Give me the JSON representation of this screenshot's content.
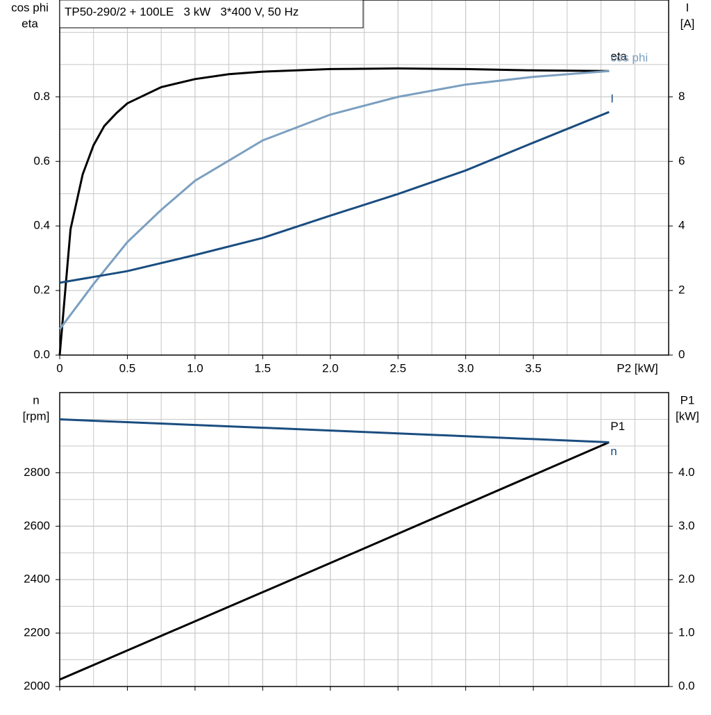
{
  "chart_data": [
    {
      "type": "line",
      "title": "TP50-290/2 + 100LE   3 kW   3*400 V, 50 Hz",
      "ylabel": [
        "cos phi",
        "eta"
      ],
      "y2label": [
        "I",
        "[A]"
      ],
      "xlabel": "P2 [kW]",
      "xlim": [
        0,
        4.5
      ],
      "xticks": [
        {
          "value": 0,
          "label": "0"
        },
        0.5,
        {
          "value": 1,
          "label": "1.0"
        },
        1.5,
        {
          "value": 2,
          "label": "2.0"
        },
        2.5,
        {
          "value": 3,
          "label": "3.0"
        },
        3.5
      ],
      "ylim": [
        0,
        1.1
      ],
      "yticks": [
        {
          "value": 0,
          "label": "0.0"
        },
        0.2,
        0.4,
        0.6,
        0.8
      ],
      "y2lim": [
        0,
        11
      ],
      "y2ticks": [
        0,
        2,
        4,
        6,
        8
      ],
      "grid": true,
      "series": [
        {
          "name": "eta",
          "color": "#000000",
          "x": [
            0,
            0.08,
            0.17,
            0.25,
            0.33,
            0.42,
            0.5,
            0.75,
            1.0,
            1.25,
            1.5,
            2.0,
            2.5,
            3.0,
            3.5,
            4.06
          ],
          "values": [
            0,
            0.39,
            0.56,
            0.65,
            0.71,
            0.75,
            0.78,
            0.83,
            0.855,
            0.87,
            0.878,
            0.886,
            0.888,
            0.886,
            0.882,
            0.88
          ]
        },
        {
          "name": "cos phi",
          "color": "#7b9fc0",
          "x": [
            0,
            0.25,
            0.5,
            0.75,
            1.0,
            1.5,
            2.0,
            2.5,
            3.0,
            3.5,
            4.06
          ],
          "values": [
            0.08,
            0.22,
            0.35,
            0.45,
            0.54,
            0.665,
            0.745,
            0.8,
            0.838,
            0.862,
            0.88
          ]
        },
        {
          "name": "I",
          "color": "#1a4d80",
          "axis": "y2",
          "x": [
            0,
            0.5,
            1.0,
            1.5,
            2.0,
            2.5,
            3.0,
            3.5,
            4.06
          ],
          "values": [
            2.24,
            2.6,
            3.1,
            3.63,
            4.32,
            4.99,
            5.72,
            6.58,
            7.53
          ]
        }
      ]
    },
    {
      "type": "line",
      "ylabel": [
        "n",
        "[rpm]"
      ],
      "y2label": [
        "P1",
        "[kW]"
      ],
      "xlim": [
        0,
        4.5
      ],
      "xticks": [
        0,
        0.5,
        1,
        1.5,
        2,
        2.5,
        3,
        3.5
      ],
      "ylim": [
        2000,
        3100
      ],
      "yticks": [
        2000,
        2200,
        2400,
        2600,
        2800
      ],
      "y2lim": [
        0,
        5.5
      ],
      "y2ticks": [
        {
          "value": 0,
          "label": "0.0"
        },
        {
          "value": 1,
          "label": "1.0"
        },
        {
          "value": 2,
          "label": "2.0"
        },
        {
          "value": 3,
          "label": "3.0"
        },
        {
          "value": 4,
          "label": "4.0"
        }
      ],
      "grid": true,
      "series": [
        {
          "name": "P1",
          "color": "#000000",
          "axis": "y2",
          "x": [
            0,
            2,
            4.06
          ],
          "values": [
            0.13,
            2.31,
            4.57
          ]
        },
        {
          "name": "n",
          "color": "#1a4d80",
          "x": [
            0,
            2,
            4.06
          ],
          "values": [
            3000,
            2958,
            2914
          ]
        }
      ]
    }
  ]
}
